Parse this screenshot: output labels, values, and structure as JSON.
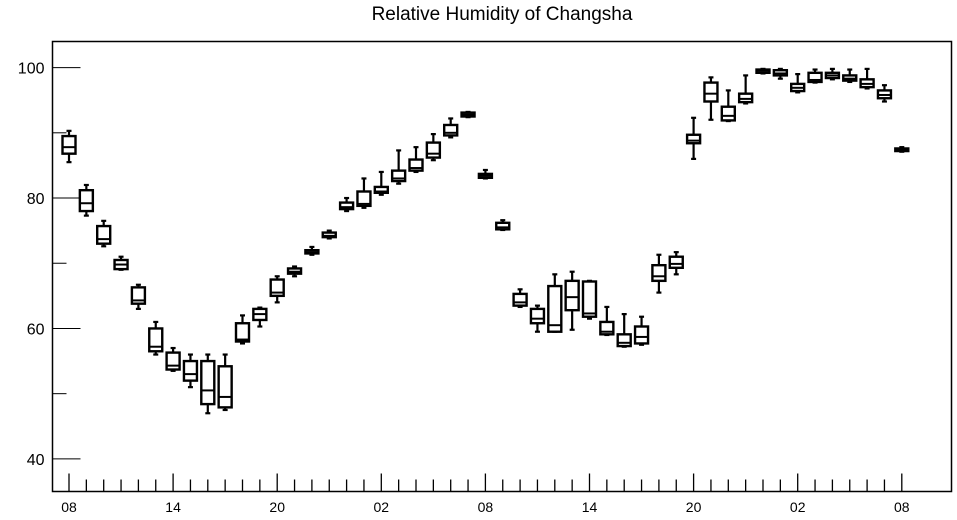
{
  "chart_data": {
    "type": "boxplot",
    "title": "Relative Humidity of Changsha",
    "xlabel": "",
    "ylabel": "",
    "ylim": [
      35,
      104
    ],
    "y_ticks": [
      40,
      60,
      80,
      100
    ],
    "x_tick_labels": [
      {
        "at": 0,
        "label": "08"
      },
      {
        "at": 6,
        "label": "14"
      },
      {
        "at": 12,
        "label": "20"
      },
      {
        "at": 18,
        "label": "02"
      },
      {
        "at": 24,
        "label": "08"
      },
      {
        "at": 30,
        "label": "14"
      },
      {
        "at": 36,
        "label": "20"
      },
      {
        "at": 42,
        "label": "02"
      },
      {
        "at": 48,
        "label": "08"
      }
    ],
    "x_minor_step": 1,
    "grid": false,
    "boxes": [
      {
        "x": 0,
        "min": 85.5,
        "q1": 86.8,
        "median": 87.8,
        "q3": 89.5,
        "max": 90.3
      },
      {
        "x": 1,
        "min": 77.3,
        "q1": 78.0,
        "median": 79.2,
        "q3": 81.2,
        "max": 82.0
      },
      {
        "x": 2,
        "min": 72.6,
        "q1": 73.0,
        "median": 73.7,
        "q3": 75.7,
        "max": 76.5
      },
      {
        "x": 3,
        "min": 69.0,
        "q1": 69.1,
        "median": 69.8,
        "q3": 70.5,
        "max": 71.0
      },
      {
        "x": 4,
        "min": 63.0,
        "q1": 63.8,
        "median": 64.3,
        "q3": 66.3,
        "max": 66.7
      },
      {
        "x": 5,
        "min": 56.0,
        "q1": 56.5,
        "median": 57.2,
        "q3": 60.0,
        "max": 61.0
      },
      {
        "x": 6,
        "min": 53.5,
        "q1": 53.7,
        "median": 54.3,
        "q3": 56.3,
        "max": 57.0
      },
      {
        "x": 7,
        "min": 51.0,
        "q1": 52.0,
        "median": 53.0,
        "q3": 55.0,
        "max": 56.0
      },
      {
        "x": 8,
        "min": 47.0,
        "q1": 48.4,
        "median": 50.5,
        "q3": 55.0,
        "max": 56.0
      },
      {
        "x": 9,
        "min": 47.5,
        "q1": 47.9,
        "median": 49.5,
        "q3": 54.2,
        "max": 56.0
      },
      {
        "x": 10,
        "min": 57.7,
        "q1": 58.0,
        "median": 58.3,
        "q3": 60.8,
        "max": 62.0
      },
      {
        "x": 11,
        "min": 60.3,
        "q1": 61.3,
        "median": 62.2,
        "q3": 63.0,
        "max": 63.2
      },
      {
        "x": 12,
        "min": 64.0,
        "q1": 65.0,
        "median": 65.5,
        "q3": 67.5,
        "max": 68.0
      },
      {
        "x": 13,
        "min": 68.0,
        "q1": 68.4,
        "median": 68.7,
        "q3": 69.2,
        "max": 69.5
      },
      {
        "x": 14,
        "min": 71.3,
        "q1": 71.5,
        "median": 71.7,
        "q3": 72.0,
        "max": 72.5
      },
      {
        "x": 15,
        "min": 73.8,
        "q1": 74.0,
        "median": 74.2,
        "q3": 74.7,
        "max": 75.0
      },
      {
        "x": 16,
        "min": 78.0,
        "q1": 78.3,
        "median": 78.6,
        "q3": 79.3,
        "max": 80.0
      },
      {
        "x": 17,
        "min": 78.5,
        "q1": 78.8,
        "median": 79.1,
        "q3": 81.0,
        "max": 83.0
      },
      {
        "x": 18,
        "min": 80.5,
        "q1": 80.8,
        "median": 81.0,
        "q3": 81.7,
        "max": 84.0
      },
      {
        "x": 19,
        "min": 82.2,
        "q1": 82.6,
        "median": 83.0,
        "q3": 84.2,
        "max": 87.3
      },
      {
        "x": 20,
        "min": 84.0,
        "q1": 84.2,
        "median": 84.6,
        "q3": 85.9,
        "max": 87.8
      },
      {
        "x": 21,
        "min": 85.8,
        "q1": 86.2,
        "median": 86.8,
        "q3": 88.5,
        "max": 89.8
      },
      {
        "x": 22,
        "min": 89.3,
        "q1": 89.6,
        "median": 90.0,
        "q3": 91.2,
        "max": 92.2
      },
      {
        "x": 23,
        "min": 92.4,
        "q1": 92.5,
        "median": 92.8,
        "q3": 93.1,
        "max": 93.2
      },
      {
        "x": 24,
        "min": 83.0,
        "q1": 83.1,
        "median": 83.4,
        "q3": 83.7,
        "max": 84.3
      },
      {
        "x": 25,
        "min": 75.1,
        "q1": 75.2,
        "median": 75.5,
        "q3": 76.2,
        "max": 76.6
      },
      {
        "x": 26,
        "min": 63.3,
        "q1": 63.5,
        "median": 64.0,
        "q3": 65.3,
        "max": 66.0
      },
      {
        "x": 27,
        "min": 59.5,
        "q1": 60.8,
        "median": 61.5,
        "q3": 63.0,
        "max": 63.5
      },
      {
        "x": 28,
        "min": 59.5,
        "q1": 59.5,
        "median": 60.5,
        "q3": 66.5,
        "max": 68.3
      },
      {
        "x": 29,
        "min": 59.8,
        "q1": 62.8,
        "median": 64.8,
        "q3": 67.3,
        "max": 68.7
      },
      {
        "x": 30,
        "min": 61.5,
        "q1": 61.8,
        "median": 62.3,
        "q3": 67.2,
        "max": 67.3
      },
      {
        "x": 31,
        "min": 59.0,
        "q1": 59.1,
        "median": 59.5,
        "q3": 61.0,
        "max": 63.3
      },
      {
        "x": 32,
        "min": 57.2,
        "q1": 57.3,
        "median": 57.8,
        "q3": 59.1,
        "max": 62.2
      },
      {
        "x": 33,
        "min": 57.5,
        "q1": 57.7,
        "median": 58.7,
        "q3": 60.3,
        "max": 61.8
      },
      {
        "x": 34,
        "min": 65.5,
        "q1": 67.3,
        "median": 68.0,
        "q3": 69.7,
        "max": 71.3
      },
      {
        "x": 35,
        "min": 68.3,
        "q1": 69.3,
        "median": 69.9,
        "q3": 71.0,
        "max": 71.7
      },
      {
        "x": 36,
        "min": 86.0,
        "q1": 88.4,
        "median": 88.8,
        "q3": 89.7,
        "max": 92.3
      },
      {
        "x": 37,
        "min": 92.0,
        "q1": 94.8,
        "median": 96.0,
        "q3": 97.7,
        "max": 98.5
      },
      {
        "x": 38,
        "min": 91.8,
        "q1": 91.9,
        "median": 92.6,
        "q3": 94.0,
        "max": 96.5
      },
      {
        "x": 39,
        "min": 94.5,
        "q1": 94.7,
        "median": 95.2,
        "q3": 96.0,
        "max": 98.8
      },
      {
        "x": 40,
        "min": 99.1,
        "q1": 99.2,
        "median": 99.5,
        "q3": 99.7,
        "max": 99.8
      },
      {
        "x": 41,
        "min": 98.3,
        "q1": 98.8,
        "median": 99.1,
        "q3": 99.6,
        "max": 99.8
      },
      {
        "x": 42,
        "min": 96.2,
        "q1": 96.4,
        "median": 96.9,
        "q3": 97.5,
        "max": 99.0
      },
      {
        "x": 43,
        "min": 97.7,
        "q1": 97.8,
        "median": 98.1,
        "q3": 99.2,
        "max": 99.7
      },
      {
        "x": 44,
        "min": 98.2,
        "q1": 98.4,
        "median": 98.8,
        "q3": 99.2,
        "max": 99.8
      },
      {
        "x": 45,
        "min": 97.8,
        "q1": 98.0,
        "median": 98.3,
        "q3": 98.8,
        "max": 99.7
      },
      {
        "x": 46,
        "min": 96.8,
        "q1": 97.0,
        "median": 97.5,
        "q3": 98.2,
        "max": 99.8
      },
      {
        "x": 47,
        "min": 94.8,
        "q1": 95.3,
        "median": 95.8,
        "q3": 96.5,
        "max": 97.3
      },
      {
        "x": 48,
        "min": 87.1,
        "q1": 87.2,
        "median": 87.4,
        "q3": 87.6,
        "max": 87.8
      }
    ]
  }
}
